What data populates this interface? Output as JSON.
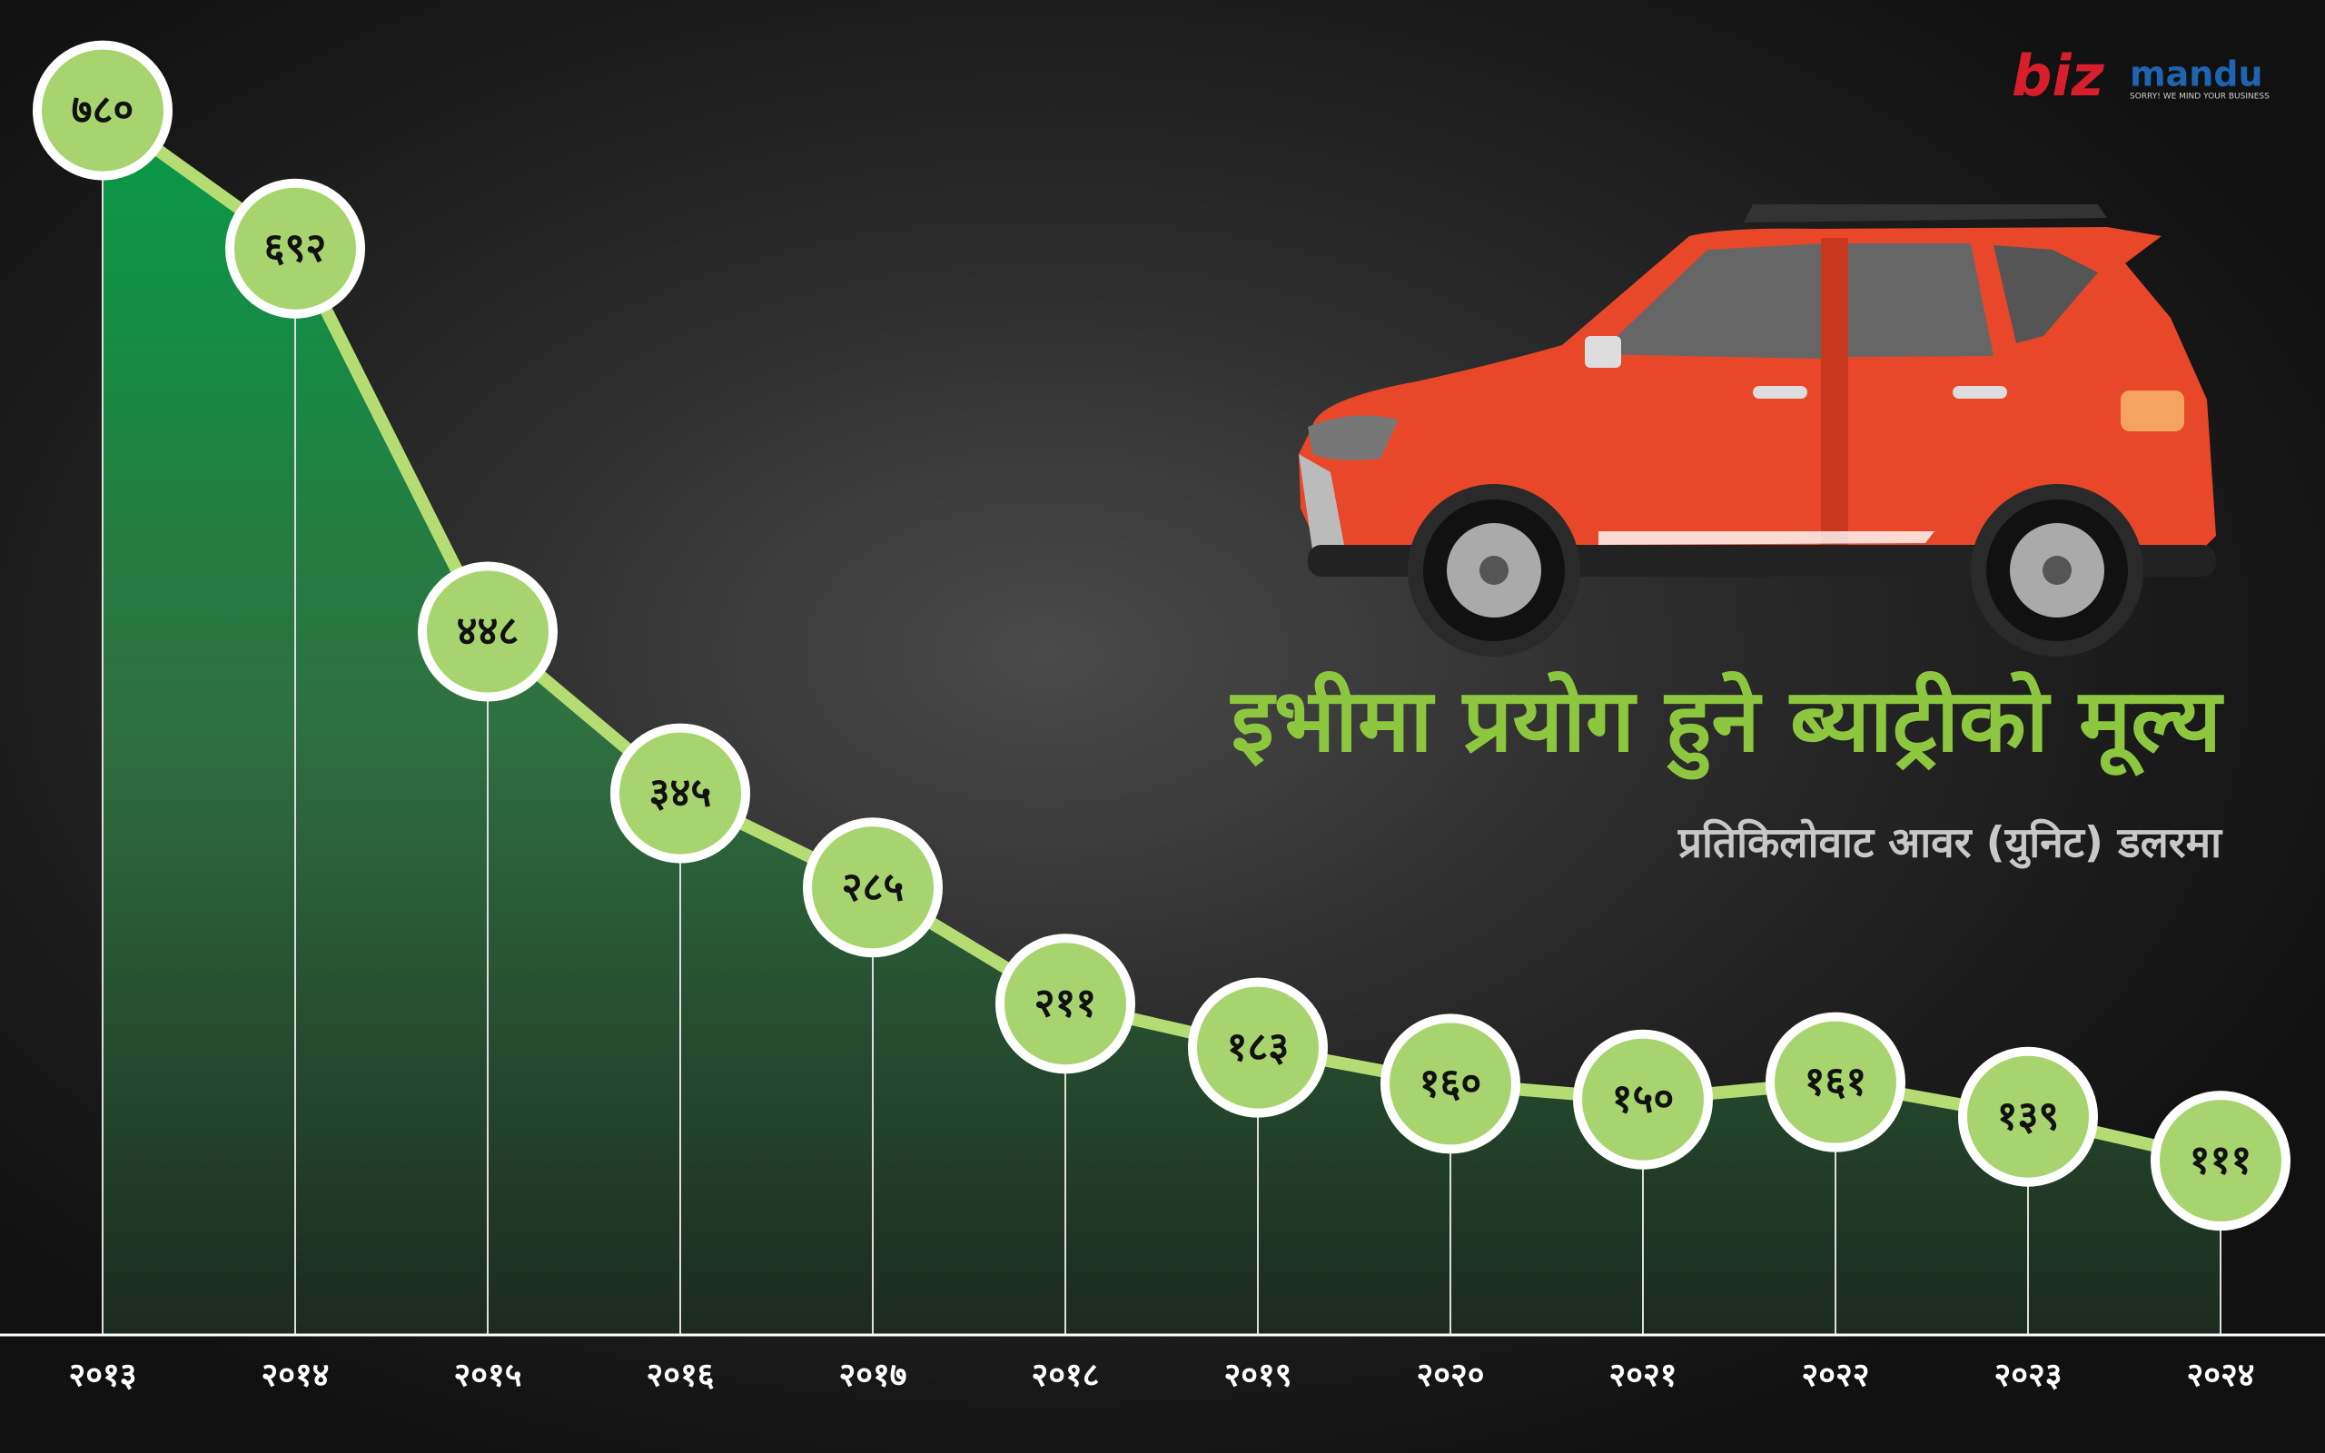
{
  "chart_data": {
    "type": "line",
    "title": "इभीमा प्रयोग हुने ब्याट्रीको मूल्य",
    "subtitle": "प्रतिकिलोवाट आवर (युनिट) डलरमा",
    "categories": [
      "२०१३",
      "२०१४",
      "२०१५",
      "२०१६",
      "२०१७",
      "२०१८",
      "२०१९",
      "२०२०",
      "२०२१",
      "२०२२",
      "२०२३",
      "२०२४"
    ],
    "values": [
      780,
      692,
      448,
      345,
      285,
      211,
      183,
      160,
      150,
      161,
      139,
      111
    ],
    "value_labels": [
      "७८०",
      "६९२",
      "४४८",
      "३४५",
      "२८५",
      "२११",
      "१८३",
      "१६०",
      "१५०",
      "१६१",
      "१३९",
      "१११"
    ],
    "color": "#b5dc72",
    "ylim": [
      0,
      800
    ]
  },
  "brand": {
    "name_part1": "biz",
    "name_part2": "mandu",
    "tagline": "SORRY! WE MIND YOUR BUSINESS"
  }
}
